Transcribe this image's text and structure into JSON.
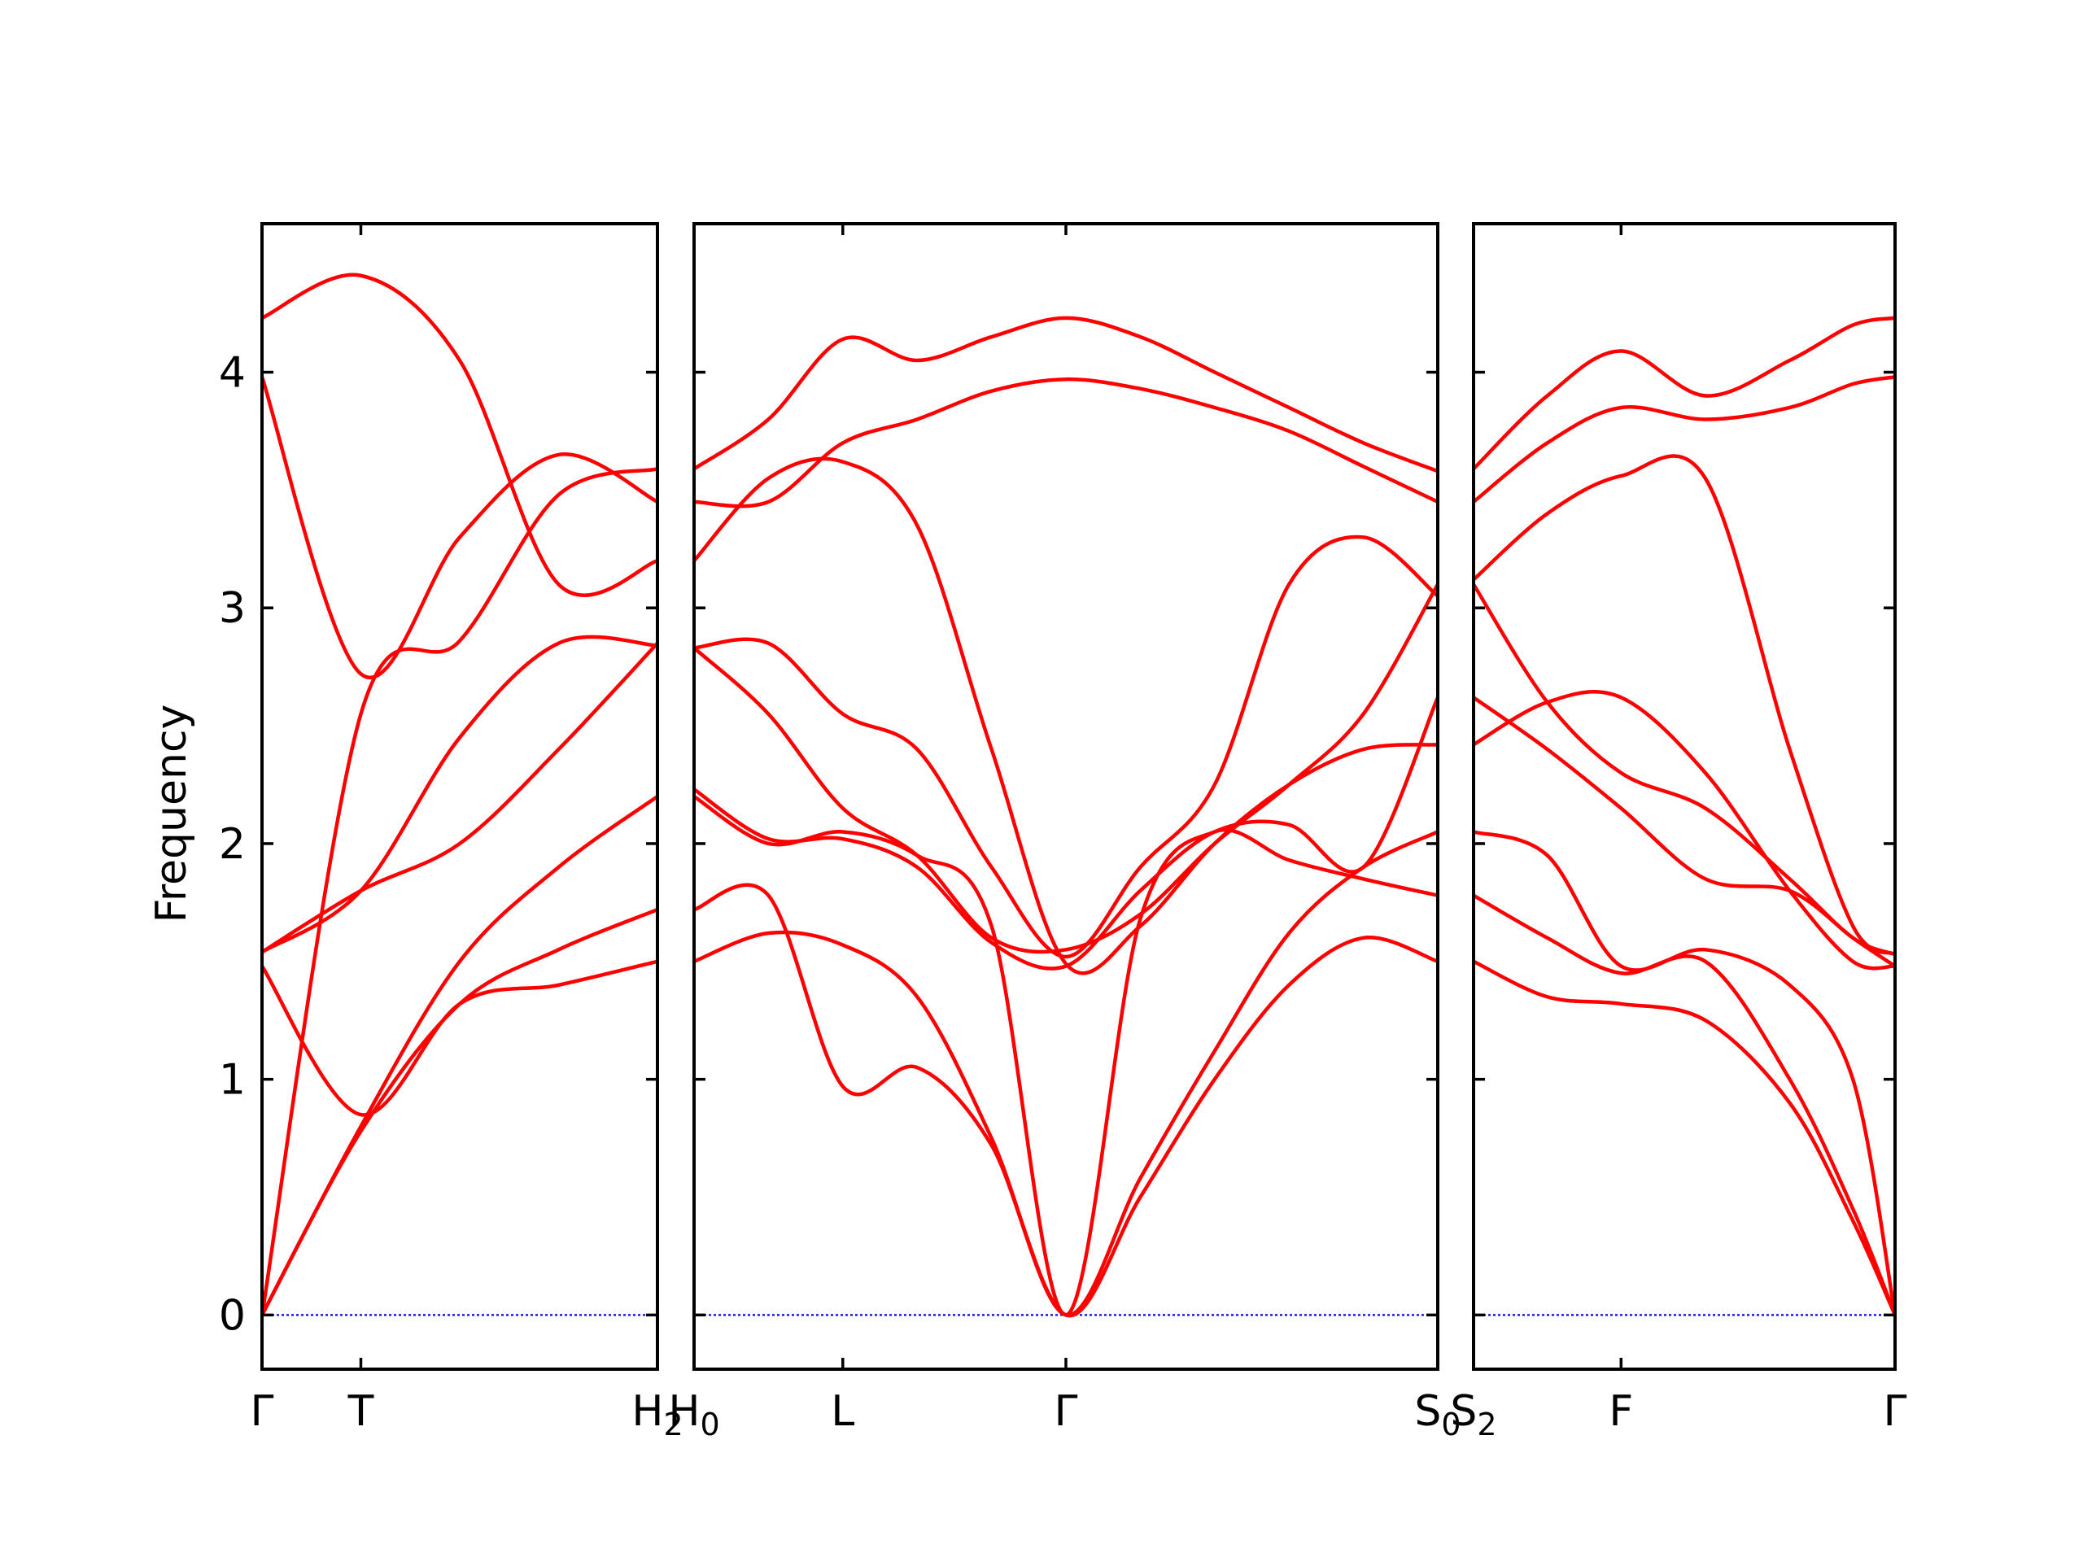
{
  "chart_data": {
    "type": "line",
    "ylabel": "Frequency",
    "ylim": [
      -0.23,
      4.63
    ],
    "yticks": [
      0,
      1,
      2,
      3,
      4
    ],
    "band_color": "#ff0000",
    "zero_line_color": "#0000ff",
    "grid": false,
    "legend": "none",
    "panels": [
      {
        "k_points": [
          "Γ",
          "T",
          "H2"
        ],
        "k_point_labels": [
          {
            "base": "Γ",
            "sub": ""
          },
          {
            "base": "T",
            "sub": ""
          },
          {
            "base": "H",
            "sub": "2"
          }
        ],
        "x": [
          0,
          0.25,
          0.5,
          0.75,
          1.0
        ],
        "bands": [
          [
            0.0,
            0.78,
            1.32,
            1.55,
            1.72
          ],
          [
            0.0,
            0.8,
            1.5,
            1.9,
            2.2
          ],
          [
            0.0,
            2.55,
            2.86,
            3.48,
            3.59
          ],
          [
            1.48,
            0.85,
            1.32,
            1.4,
            1.5
          ],
          [
            1.54,
            1.8,
            2.0,
            2.4,
            2.85
          ],
          [
            1.54,
            1.8,
            2.45,
            2.85,
            2.84
          ],
          [
            3.98,
            2.72,
            3.3,
            3.65,
            3.45
          ],
          [
            4.23,
            4.41,
            4.05,
            3.1,
            3.2
          ]
        ]
      },
      {
        "k_points": [
          "H0",
          "L",
          "Γ",
          "S0"
        ],
        "k_point_labels": [
          {
            "base": "H",
            "sub": "0"
          },
          {
            "base": "L",
            "sub": ""
          },
          {
            "base": "Γ",
            "sub": ""
          },
          {
            "base": "S",
            "sub": "0"
          }
        ],
        "x": [
          0,
          0.1,
          0.2,
          0.3,
          0.4,
          0.5,
          0.6,
          0.7,
          0.8,
          0.9,
          1.0
        ],
        "bands": [
          [
            1.5,
            1.62,
            1.57,
            1.35,
            0.75,
            0.0,
            0.5,
            1.0,
            1.4,
            1.6,
            1.5
          ],
          [
            1.72,
            1.78,
            0.97,
            1.05,
            0.72,
            0.0,
            0.58,
            1.12,
            1.62,
            1.9,
            2.05
          ],
          [
            2.2,
            2.0,
            2.05,
            1.95,
            1.65,
            0.0,
            1.68,
            2.05,
            1.93,
            1.85,
            1.78
          ],
          [
            2.23,
            2.02,
            2.02,
            1.9,
            1.58,
            1.48,
            1.8,
            2.05,
            2.08,
            1.9,
            2.62
          ],
          [
            2.83,
            2.55,
            2.15,
            1.95,
            1.6,
            1.55,
            1.7,
            2.0,
            2.25,
            2.55,
            3.1
          ],
          [
            2.83,
            2.85,
            2.55,
            2.4,
            1.9,
            1.52,
            1.9,
            2.25,
            3.1,
            3.3,
            3.05
          ],
          [
            3.2,
            3.55,
            3.62,
            3.35,
            2.4,
            1.49,
            1.65,
            2.0,
            2.25,
            2.4,
            2.42
          ],
          [
            3.45,
            3.45,
            3.7,
            3.8,
            3.92,
            3.97,
            3.93,
            3.85,
            3.75,
            3.6,
            3.45
          ],
          [
            3.59,
            3.8,
            4.14,
            4.05,
            4.15,
            4.23,
            4.15,
            4.0,
            3.85,
            3.7,
            3.58
          ]
        ]
      },
      {
        "k_points": [
          "S2",
          "F",
          "Γ"
        ],
        "k_point_labels": [
          {
            "base": "S",
            "sub": "2"
          },
          {
            "base": "F",
            "sub": ""
          },
          {
            "base": "Γ",
            "sub": ""
          }
        ],
        "x": [
          0,
          0.175,
          0.35,
          0.55,
          0.75,
          0.9,
          1.0
        ],
        "bands": [
          [
            1.5,
            1.35,
            1.32,
            1.25,
            0.9,
            0.4,
            0.0
          ],
          [
            1.78,
            1.6,
            1.45,
            1.5,
            1.0,
            0.45,
            0.0
          ],
          [
            2.05,
            1.95,
            1.48,
            1.55,
            1.4,
            1.0,
            0.0
          ],
          [
            2.42,
            2.6,
            2.62,
            2.3,
            1.8,
            1.5,
            1.48
          ],
          [
            2.62,
            2.4,
            2.15,
            1.85,
            1.8,
            1.6,
            1.48
          ],
          [
            3.1,
            2.6,
            2.3,
            2.15,
            1.85,
            1.6,
            1.53
          ],
          [
            3.12,
            3.4,
            3.56,
            3.55,
            2.4,
            1.65,
            1.53
          ],
          [
            3.45,
            3.7,
            3.85,
            3.8,
            3.85,
            3.95,
            3.98
          ],
          [
            3.59,
            3.9,
            4.09,
            3.9,
            4.05,
            4.2,
            4.23
          ]
        ]
      }
    ]
  }
}
